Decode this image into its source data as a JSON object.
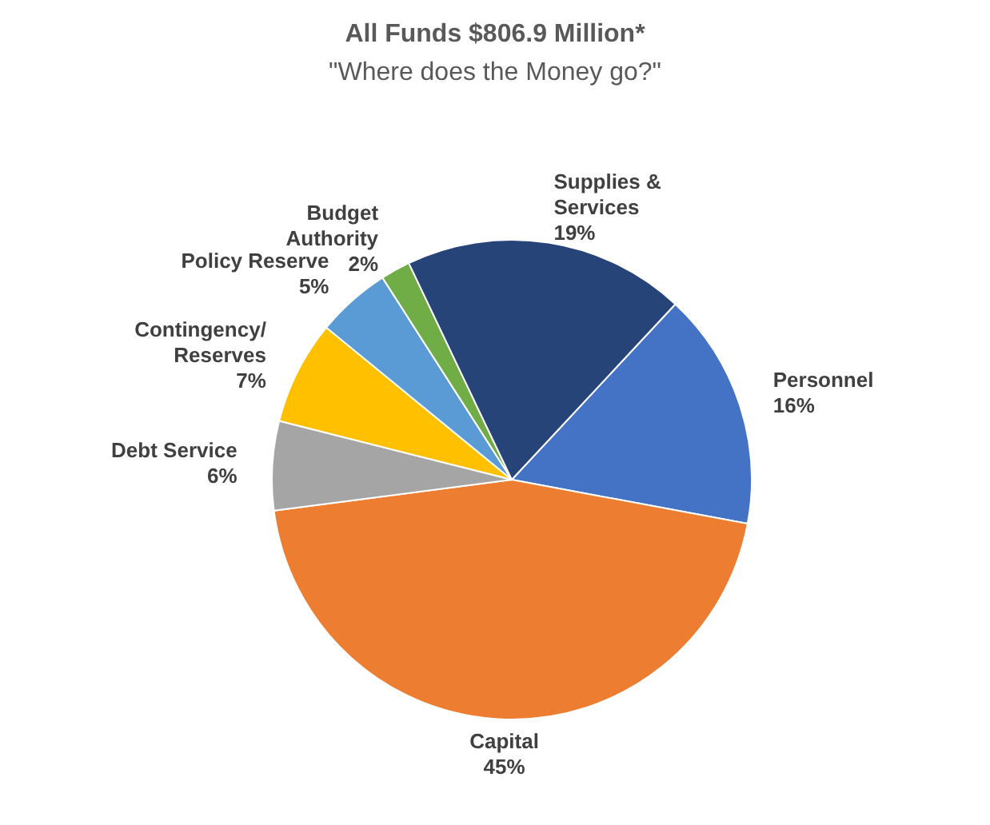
{
  "chart_data": {
    "type": "pie",
    "title": "All Funds $806.9 Million*",
    "subtitle": "\"Where does the Money go?\"",
    "categories": [
      "Personnel",
      "Capital",
      "Debt Service",
      "Contingency/Reserves",
      "Policy Reserve",
      "Budget Authority",
      "Supplies & Services"
    ],
    "values": [
      16,
      45,
      6,
      7,
      5,
      2,
      19
    ],
    "colors": [
      "#4472c4",
      "#ed7d31",
      "#a5a5a5",
      "#ffc000",
      "#5b9bd5",
      "#70ad47",
      "#264478"
    ],
    "value_labels": [
      "16%",
      "45%",
      "6%",
      "7%",
      "5%",
      "2%",
      "19%"
    ],
    "legend": false
  }
}
